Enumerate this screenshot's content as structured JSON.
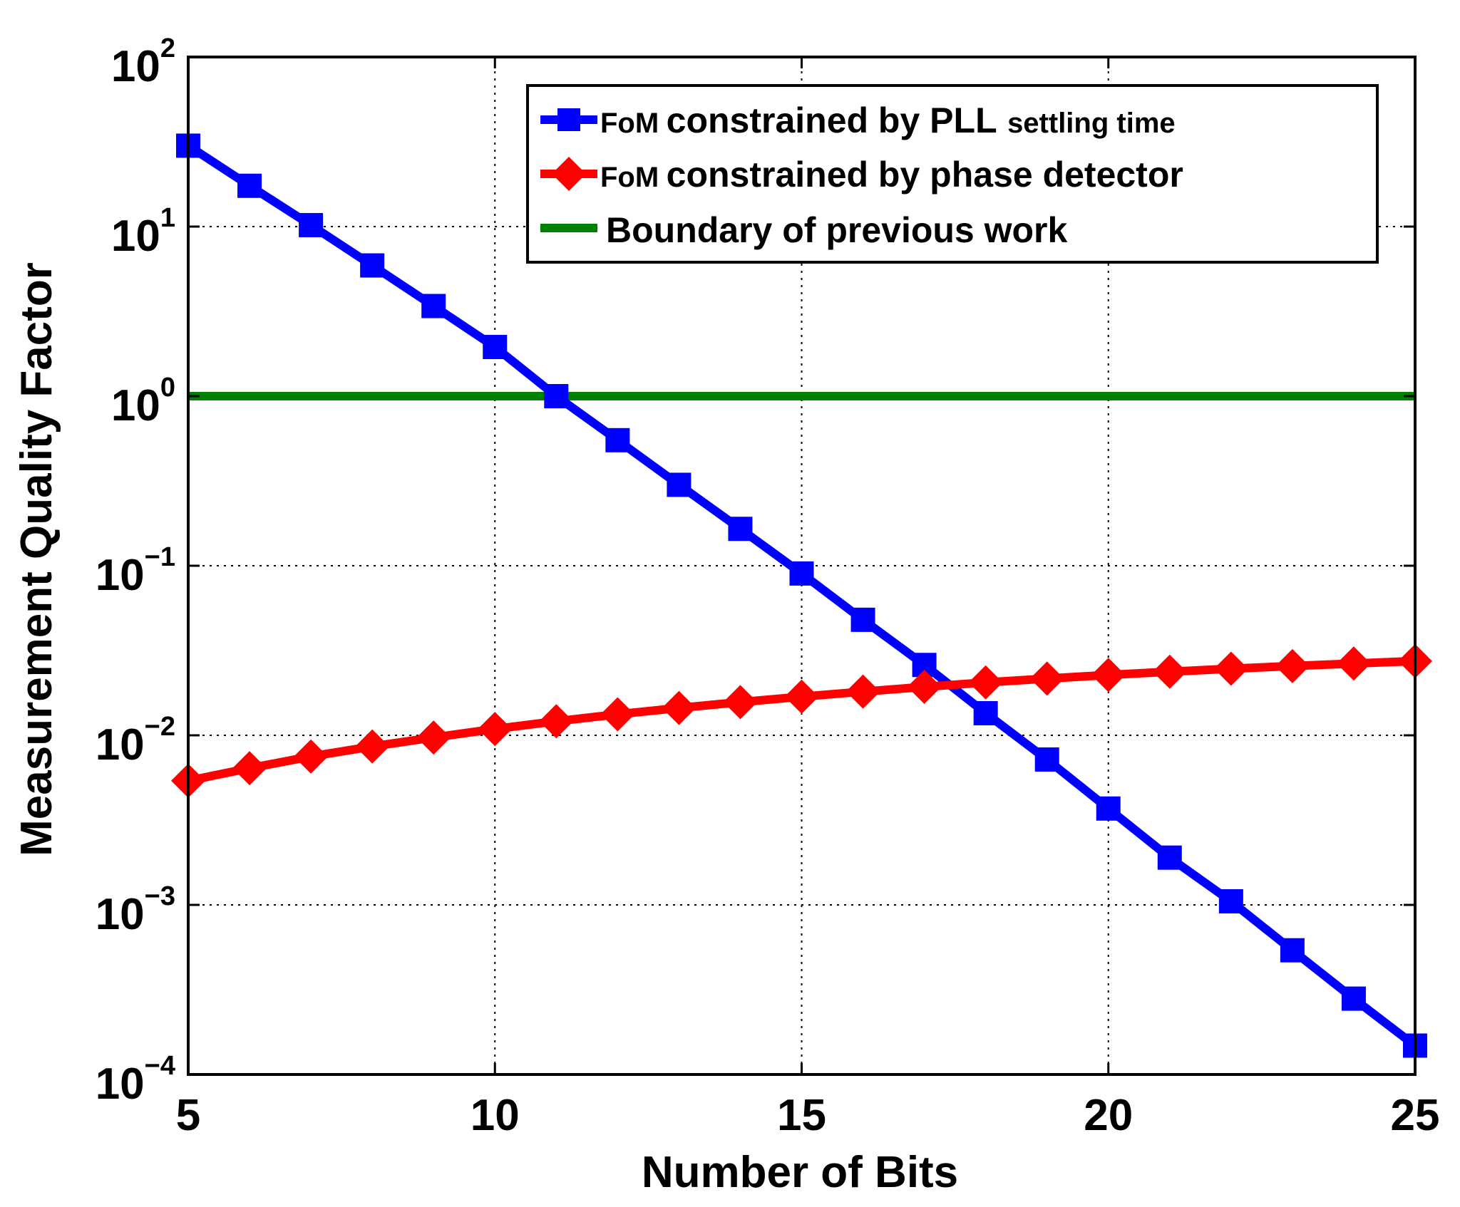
{
  "chart_data": {
    "type": "line",
    "xlabel": "Number of Bits",
    "ylabel": "Measurement Quality Factor",
    "xlim": [
      5,
      25
    ],
    "ylim": [
      0.0001,
      100
    ],
    "yscale": "log",
    "grid": true,
    "x_ticks": [
      5,
      10,
      15,
      20,
      25
    ],
    "x_tick_labels": [
      "5",
      "10",
      "15",
      "20",
      "25"
    ],
    "y_ticks": [
      0.0001,
      0.001,
      0.01,
      0.1,
      1,
      10,
      100
    ],
    "y_tick_base": "10",
    "y_tick_exponents": [
      "−4",
      "−3",
      "−2",
      "−1",
      "0",
      "1",
      "2"
    ],
    "legend_position": "top-right",
    "x": [
      5,
      6,
      7,
      8,
      9,
      10,
      11,
      12,
      13,
      14,
      15,
      16,
      17,
      18,
      19,
      20,
      21,
      22,
      23,
      24,
      25
    ],
    "series": [
      {
        "name": "FoM constrained by PLL settling time",
        "legend_prefix": "FoM",
        "legend_main": "constrained by PLL",
        "legend_suffix": "settling time",
        "color": "#0000ff",
        "marker": "square",
        "values": [
          30,
          17.4,
          10.2,
          5.9,
          3.4,
          1.95,
          1.0,
          0.55,
          0.3,
          0.165,
          0.09,
          0.048,
          0.026,
          0.0135,
          0.0072,
          0.0037,
          0.0019,
          0.00105,
          0.00054,
          0.00028,
          0.000148
        ]
      },
      {
        "name": "FoM constrained by phase detector",
        "legend_prefix": "FoM",
        "legend_main": "constrained by phase detector",
        "color": "#ff0000",
        "marker": "diamond",
        "values": [
          0.0054,
          0.0064,
          0.0075,
          0.0086,
          0.0097,
          0.0109,
          0.0121,
          0.0133,
          0.0145,
          0.0157,
          0.0169,
          0.0181,
          0.0193,
          0.0205,
          0.0216,
          0.0227,
          0.0237,
          0.0247,
          0.0256,
          0.0265,
          0.0274
        ]
      },
      {
        "name": "Boundary of previous work",
        "color": "#008000",
        "marker": "none",
        "values": [
          1,
          1,
          1,
          1,
          1,
          1,
          1,
          1,
          1,
          1,
          1,
          1,
          1,
          1,
          1,
          1,
          1,
          1,
          1,
          1,
          1
        ]
      }
    ]
  }
}
